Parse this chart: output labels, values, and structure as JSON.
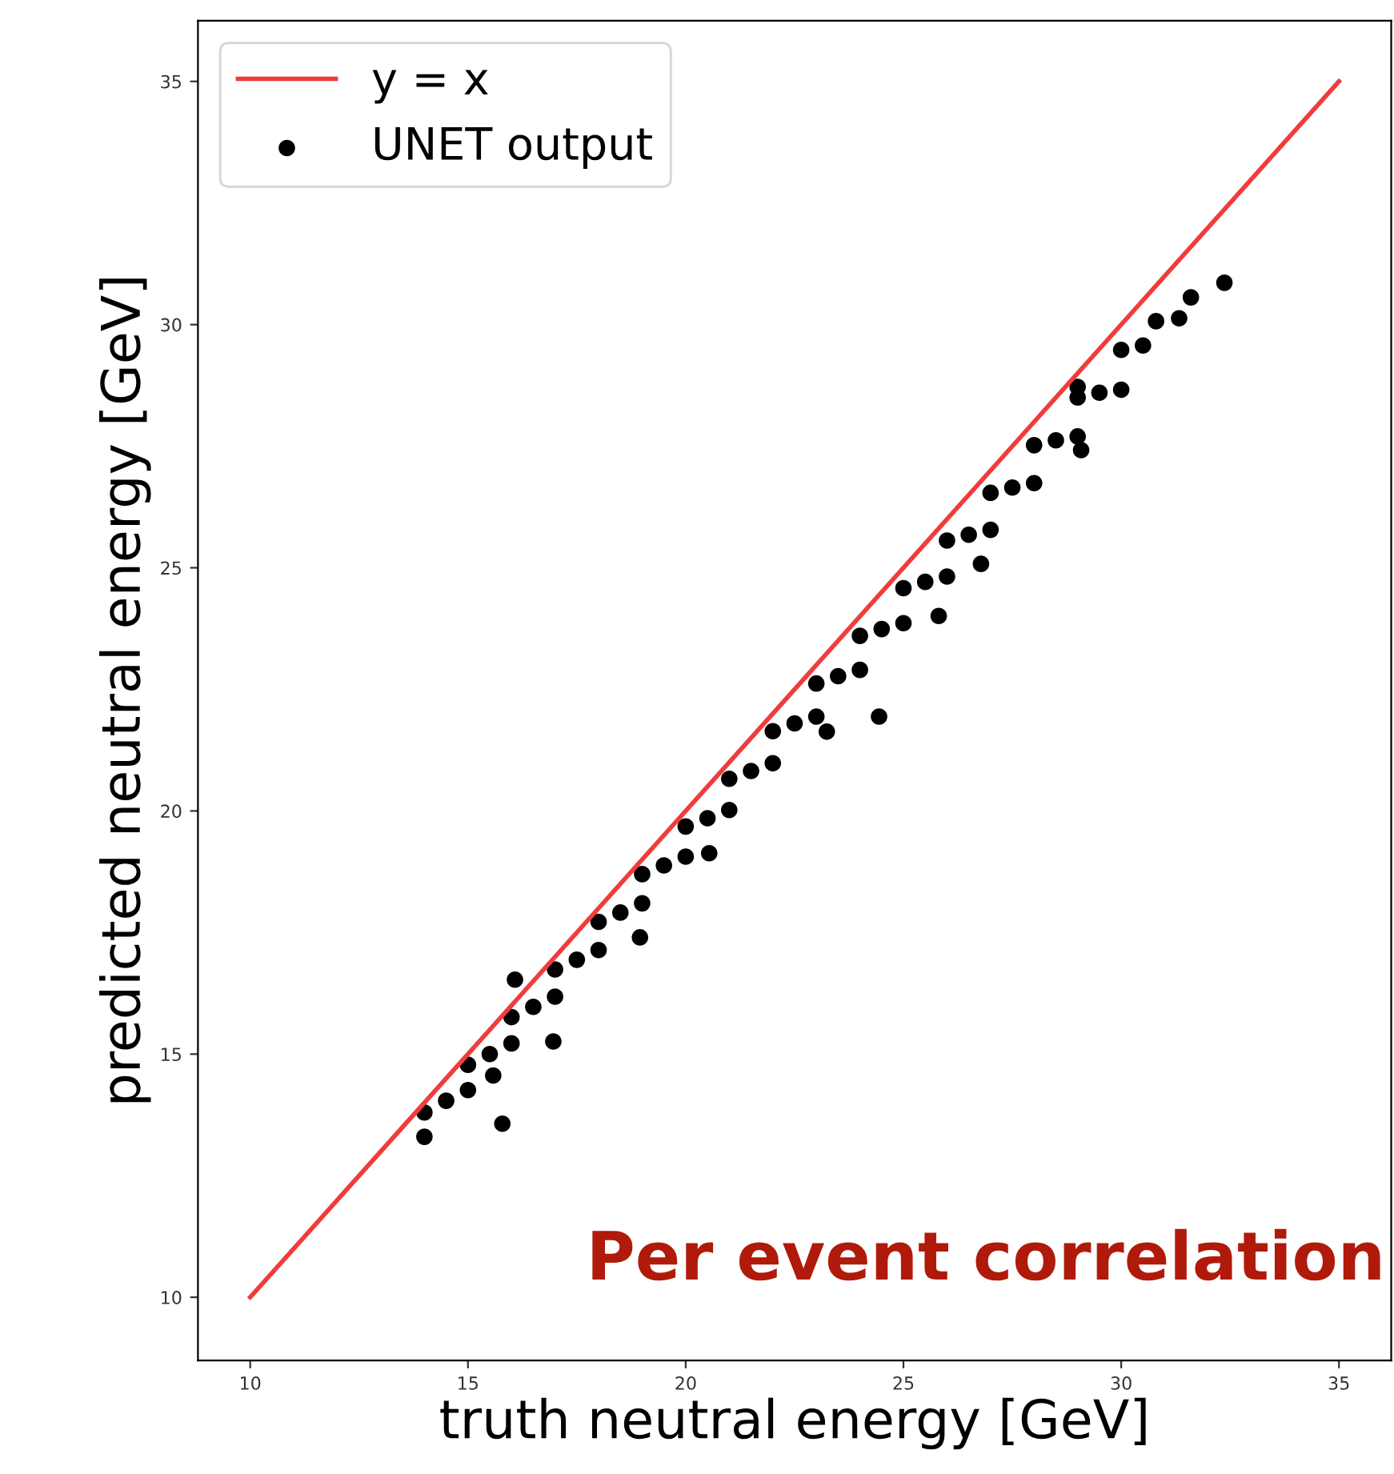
{
  "chart_data": {
    "type": "scatter",
    "xlabel": "truth neutral energy [GeV]",
    "ylabel": "predicted neutral energy [GeV]",
    "xlim": [
      8.8,
      36.2
    ],
    "ylim": [
      8.7,
      36.25
    ],
    "xticks": [
      10,
      15,
      20,
      25,
      30,
      35
    ],
    "yticks": [
      10,
      15,
      20,
      25,
      30,
      35
    ],
    "grid": false,
    "legend": "top left",
    "annotations": [
      "Per event correlation"
    ],
    "series": [
      {
        "name": "y = x",
        "type": "line",
        "color": "#f03c3c",
        "x": [
          10,
          35
        ],
        "values": [
          10,
          35
        ]
      },
      {
        "name": "UNET output",
        "marker": "circle",
        "color": "#000000",
        "x": [
          14,
          15,
          16,
          17,
          18,
          19,
          20,
          21,
          22,
          23,
          24,
          25,
          26,
          27,
          28,
          29,
          30,
          14,
          15,
          16,
          17,
          18,
          19,
          20,
          21,
          22,
          23,
          24,
          25,
          26,
          27,
          28,
          29,
          30,
          14.5,
          15.5,
          16.5,
          17.5,
          18.5,
          19.5,
          20.5,
          21.5,
          22.5,
          23.5,
          24.5,
          25.5,
          26.5,
          27.5,
          28.5,
          29.5,
          30.5,
          15.58,
          15.79,
          16.08,
          16.96,
          18.95,
          20.54,
          23.24,
          24.44,
          25.81,
          26.78,
          29.0,
          29.08,
          30.8,
          31.33,
          31.6,
          32.37
        ],
        "values": [
          13.8,
          14.78,
          15.76,
          16.74,
          17.72,
          18.7,
          19.68,
          20.66,
          21.64,
          22.62,
          23.6,
          24.58,
          25.56,
          26.54,
          27.52,
          28.5,
          29.48,
          13.3,
          14.26,
          15.22,
          16.18,
          17.14,
          18.1,
          19.06,
          20.02,
          20.98,
          21.94,
          22.9,
          23.86,
          24.82,
          25.78,
          26.74,
          27.7,
          28.66,
          14.04,
          15.0,
          15.97,
          16.94,
          17.91,
          18.88,
          19.85,
          20.82,
          21.8,
          22.77,
          23.74,
          24.71,
          25.68,
          26.65,
          27.62,
          28.6,
          29.57,
          14.56,
          13.57,
          16.53,
          15.26,
          17.4,
          19.13,
          21.63,
          21.94,
          24.01,
          25.08,
          28.72,
          27.42,
          30.07,
          30.13,
          30.56,
          30.86
        ]
      }
    ]
  }
}
